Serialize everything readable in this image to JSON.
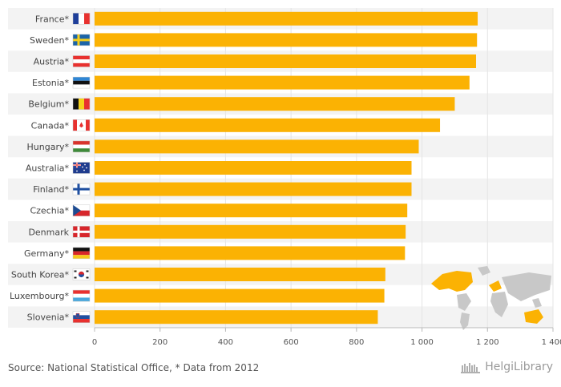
{
  "chart_data": {
    "type": "bar",
    "orientation": "horizontal",
    "title": "",
    "xlabel": "",
    "ylabel": "",
    "categories": [
      "France*",
      "Sweden*",
      "Austria*",
      "Estonia*",
      "Belgium*",
      "Canada*",
      "Hungary*",
      "Australia*",
      "Finland*",
      "Czechia*",
      "Denmark",
      "Germany*",
      "South Korea*",
      "Luxembourg*",
      "Slovenia*"
    ],
    "values": [
      1170,
      1168,
      1165,
      1145,
      1100,
      1055,
      990,
      968,
      968,
      955,
      950,
      948,
      888,
      885,
      865
    ],
    "xlim": [
      0,
      1400
    ],
    "ticks": [
      0,
      200,
      400,
      600,
      800,
      1000,
      1200,
      1400
    ],
    "tick_labels": [
      "0",
      "200",
      "400",
      "600",
      "800",
      "1 000",
      "1 200",
      "1 400"
    ],
    "bar_color": "#fbb203",
    "flags": [
      "flag-france-icon",
      "flag-sweden-icon",
      "flag-austria-icon",
      "flag-estonia-icon",
      "flag-belgium-icon",
      "flag-canada-icon",
      "flag-hungary-icon",
      "flag-australia-icon",
      "flag-finland-icon",
      "flag-czechia-icon",
      "flag-denmark-icon",
      "flag-germany-icon",
      "flag-south-korea-icon",
      "flag-luxembourg-icon",
      "flag-slovenia-icon"
    ]
  },
  "footer": {
    "source": "Source: National Statistical Office, * Data from 2012",
    "brand": "HelgiLibrary"
  },
  "colors": {
    "bar": "#fbb203",
    "row_band": "#f3f3f3",
    "map_land": "#c8c8c8",
    "map_highlight": "#fbb203"
  }
}
